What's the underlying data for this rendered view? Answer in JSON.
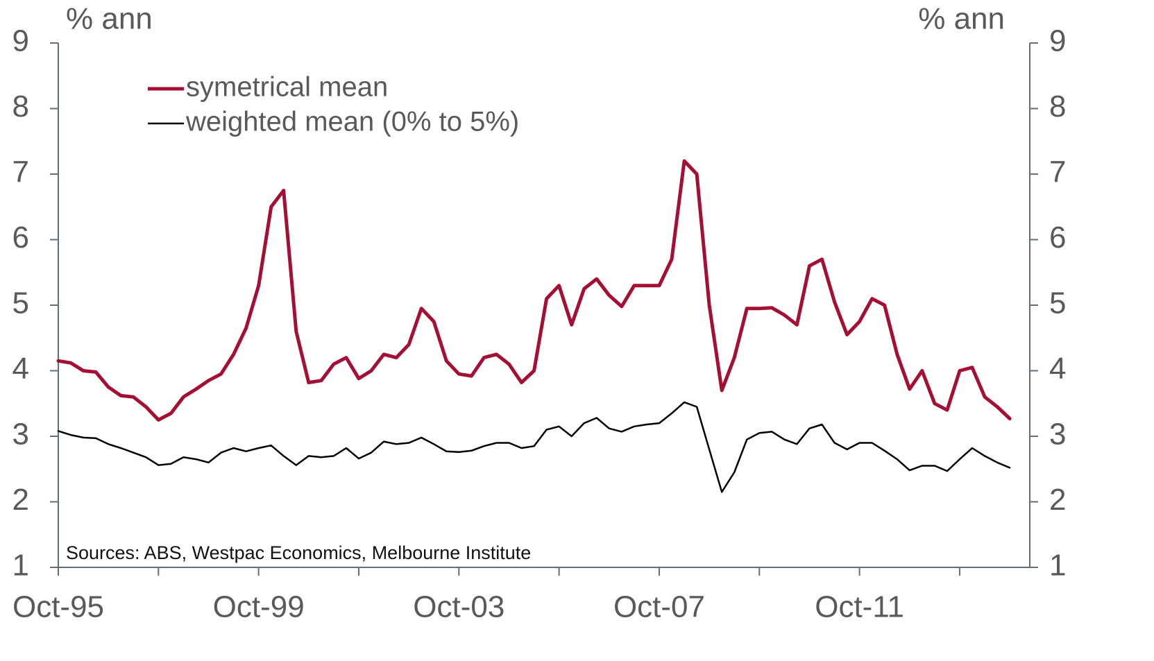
{
  "chart_data": {
    "type": "line",
    "y_unit_label": "% ann",
    "y2_unit_label": "% ann",
    "note": "Sources: ABS, Westpac Economics, Melbourne Institute",
    "x": [
      1995.75,
      1996,
      1996.25,
      1996.5,
      1996.75,
      1997,
      1997.25,
      1997.5,
      1997.75,
      1998,
      1998.25,
      1998.5,
      1998.75,
      1999,
      1999.25,
      1999.5,
      1999.75,
      2000,
      2000.25,
      2000.5,
      2000.75,
      2001,
      2001.25,
      2001.5,
      2001.75,
      2002,
      2002.25,
      2002.5,
      2002.75,
      2003,
      2003.25,
      2003.5,
      2003.75,
      2004,
      2004.25,
      2004.5,
      2004.75,
      2005,
      2005.25,
      2005.5,
      2005.75,
      2006,
      2006.25,
      2006.5,
      2006.75,
      2007,
      2007.25,
      2007.5,
      2007.75,
      2008,
      2008.25,
      2008.5,
      2008.75,
      2009,
      2009.25,
      2009.5,
      2009.75,
      2010,
      2010.25,
      2010.5,
      2010.75,
      2011,
      2011.25,
      2011.5,
      2011.75,
      2012,
      2012.25,
      2012.5,
      2012.75,
      2013,
      2013.25,
      2013.5,
      2013.75,
      2014,
      2014.25,
      2014.5,
      2014.75
    ],
    "series": [
      {
        "name": "symetrical mean",
        "color": "#a50f33",
        "width": 5,
        "values": [
          4.15,
          4.12,
          4.0,
          3.98,
          3.75,
          3.62,
          3.6,
          3.45,
          3.25,
          3.35,
          3.6,
          3.72,
          3.85,
          3.95,
          4.25,
          4.65,
          5.3,
          6.5,
          6.75,
          4.6,
          3.82,
          3.85,
          4.1,
          4.2,
          3.88,
          4.0,
          4.25,
          4.2,
          4.4,
          4.95,
          4.75,
          4.15,
          3.95,
          3.92,
          4.2,
          4.25,
          4.1,
          3.82,
          4.0,
          5.1,
          5.3,
          4.7,
          5.25,
          5.4,
          5.15,
          4.98,
          5.3,
          5.3,
          5.3,
          5.7,
          7.2,
          7.0,
          5.0,
          3.7,
          4.2,
          4.95,
          4.95,
          4.96,
          4.85,
          4.7,
          5.6,
          5.7,
          5.05,
          4.55,
          4.75,
          5.1,
          5.0,
          4.25,
          3.72,
          4.0,
          3.5,
          3.4,
          4.0,
          4.05,
          3.6,
          3.45,
          3.27
        ]
      },
      {
        "name": "weighted mean (0% to 5%)",
        "color": "#000000",
        "width": 2.5,
        "values": [
          3.08,
          3.02,
          2.98,
          2.97,
          2.88,
          2.82,
          2.75,
          2.68,
          2.56,
          2.58,
          2.68,
          2.65,
          2.6,
          2.75,
          2.82,
          2.77,
          2.82,
          2.86,
          2.7,
          2.56,
          2.7,
          2.68,
          2.7,
          2.82,
          2.66,
          2.75,
          2.92,
          2.88,
          2.9,
          2.98,
          2.88,
          2.77,
          2.76,
          2.78,
          2.85,
          2.9,
          2.9,
          2.82,
          2.85,
          3.1,
          3.15,
          3.0,
          3.2,
          3.28,
          3.12,
          3.07,
          3.15,
          3.18,
          3.2,
          3.35,
          3.52,
          3.45,
          2.8,
          2.15,
          2.45,
          2.95,
          3.05,
          3.07,
          2.95,
          2.88,
          3.12,
          3.18,
          2.9,
          2.8,
          2.9,
          2.9,
          2.78,
          2.65,
          2.48,
          2.55,
          2.55,
          2.47,
          2.65,
          2.82,
          2.7,
          2.6,
          2.52
        ]
      }
    ],
    "xlim": [
      1995.75,
      2015.15
    ],
    "xticks": [
      {
        "value": 1995.75,
        "label": "Oct-95"
      },
      {
        "value": 1999.75,
        "label": "Oct-99"
      },
      {
        "value": 2003.75,
        "label": "Oct-03"
      },
      {
        "value": 2007.75,
        "label": "Oct-07"
      },
      {
        "value": 2011.75,
        "label": "Oct-11"
      }
    ],
    "xminor_ticks": [
      1997.75,
      2001.75,
      2005.75,
      2009.75,
      2013.75
    ],
    "ylim": [
      1,
      9
    ],
    "yticks": [
      1,
      2,
      3,
      4,
      5,
      6,
      7,
      8,
      9
    ],
    "y2lim": [
      1,
      9
    ],
    "y2ticks": [
      1,
      2,
      3,
      4,
      5,
      6,
      7,
      8,
      9
    ],
    "legend": "upper left",
    "grid": false
  }
}
